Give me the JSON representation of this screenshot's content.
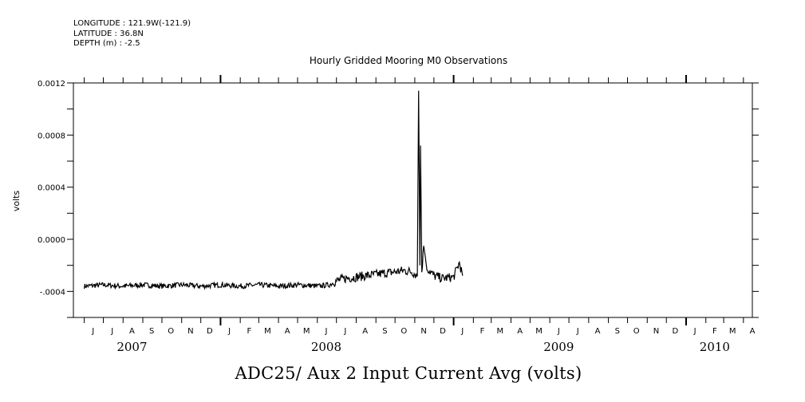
{
  "header": {
    "longitude": "LONGITUDE : 121.9W(-121.9)",
    "latitude": "LATITUDE : 36.8N",
    "depth": "DEPTH (m) : -2.5"
  },
  "footer_title": "ADC25/ Aux 2 Input Current Avg (volts)",
  "chart_data": {
    "type": "line",
    "title": "Hourly Gridded Mooring M0 Observations",
    "ylabel": "volts",
    "xlabel": "",
    "ylim": [
      -0.0006,
      0.0012
    ],
    "yticks": [
      -0.0004,
      0.0,
      0.0004,
      0.0008,
      0.0012
    ],
    "ytick_labels": [
      "-.0004",
      "0.0000",
      "0.0004",
      "0.0008",
      "0.0012"
    ],
    "xlim": [
      "2007-05-15",
      "2010-04-15"
    ],
    "month_labels": [
      "J",
      "J",
      "A",
      "S",
      "O",
      "N",
      "D",
      "J",
      "F",
      "M",
      "A",
      "M",
      "J",
      "J",
      "A",
      "S",
      "O",
      "N",
      "D",
      "J",
      "F",
      "M",
      "A",
      "M",
      "J",
      "J",
      "A",
      "S",
      "O",
      "N",
      "D",
      "J",
      "F",
      "M",
      "A"
    ],
    "year_labels": [
      "2007",
      "2008",
      "2009",
      "2010"
    ],
    "grid": false,
    "series": [
      {
        "x": [
          "2007-06-01",
          "2007-07-01",
          "2007-08-01",
          "2007-09-01",
          "2007-10-01",
          "2007-11-01",
          "2007-12-01",
          "2008-01-01",
          "2008-02-01",
          "2008-03-01",
          "2008-04-01",
          "2008-05-01",
          "2008-06-01",
          "2008-06-20",
          "2008-07-01",
          "2008-07-15",
          "2008-08-01",
          "2008-08-15",
          "2008-09-01",
          "2008-09-15",
          "2008-10-01",
          "2008-10-15",
          "2008-10-28",
          "2008-11-05",
          "2008-11-07",
          "2008-11-09",
          "2008-11-10",
          "2008-11-12",
          "2008-11-15",
          "2008-11-20",
          "2008-12-01",
          "2008-12-15",
          "2009-01-01",
          "2009-01-10",
          "2009-01-15"
        ],
        "values": [
          -0.00036,
          -0.00035,
          -0.00036,
          -0.00035,
          -0.00036,
          -0.00035,
          -0.00036,
          -0.00035,
          -0.00036,
          -0.00035,
          -0.00036,
          -0.00035,
          -0.00036,
          -0.00035,
          -0.00032,
          -0.0003,
          -0.00029,
          -0.00028,
          -0.00027,
          -0.00026,
          -0.00025,
          -0.00024,
          -0.00025,
          -0.00028,
          0.00114,
          -0.0002,
          0.00072,
          -0.00025,
          -5e-05,
          -0.00022,
          -0.00028,
          -0.0003,
          -0.00029,
          -0.00018,
          -0.00028
        ]
      }
    ]
  }
}
